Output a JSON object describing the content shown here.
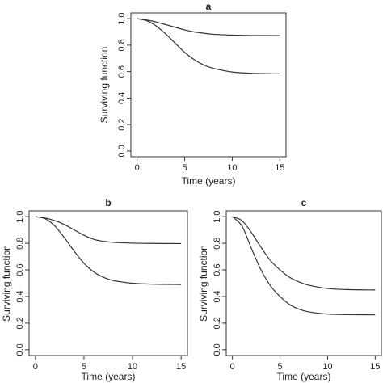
{
  "chart_data": [
    {
      "type": "line",
      "title": "a",
      "xlabel": "Time (years)",
      "ylabel": "Surviving function",
      "xlim": [
        0,
        15
      ],
      "ylim": [
        0,
        1
      ],
      "xticks": [
        0,
        5,
        10,
        15
      ],
      "yticks": [
        0.0,
        0.2,
        0.4,
        0.6,
        0.8,
        1.0
      ],
      "ytick_labels": [
        "0.0",
        "0.2",
        "0.4",
        "0.6",
        "0.8",
        "1.0"
      ],
      "xtick_labels": [
        "0",
        "5",
        "10",
        "15"
      ],
      "series": [
        {
          "x": [
            0,
            1,
            2,
            3,
            4,
            5,
            6,
            7,
            8,
            10,
            12,
            15
          ],
          "values": [
            1.0,
            0.99,
            0.975,
            0.955,
            0.935,
            0.915,
            0.9,
            0.89,
            0.882,
            0.876,
            0.873,
            0.872
          ]
        },
        {
          "x": [
            0,
            1,
            2,
            3,
            4,
            5,
            6,
            7,
            8,
            10,
            12,
            15
          ],
          "values": [
            1.0,
            0.985,
            0.945,
            0.885,
            0.815,
            0.745,
            0.69,
            0.65,
            0.625,
            0.597,
            0.587,
            0.583
          ]
        }
      ]
    },
    {
      "type": "line",
      "title": "b",
      "xlabel": "Time (years)",
      "ylabel": "Surviving function",
      "xlim": [
        0,
        15
      ],
      "ylim": [
        0,
        1
      ],
      "xticks": [
        0,
        5,
        10,
        15
      ],
      "yticks": [
        0.0,
        0.2,
        0.4,
        0.6,
        0.8,
        1.0
      ],
      "ytick_labels": [
        "0.0",
        "0.2",
        "0.4",
        "0.6",
        "0.8",
        "1.0"
      ],
      "xtick_labels": [
        "0",
        "5",
        "10",
        "15"
      ],
      "series": [
        {
          "x": [
            0,
            1,
            2,
            3,
            4,
            5,
            6,
            7,
            8,
            10,
            12,
            15
          ],
          "values": [
            1.0,
            0.99,
            0.97,
            0.94,
            0.9,
            0.86,
            0.83,
            0.815,
            0.807,
            0.801,
            0.799,
            0.798
          ]
        },
        {
          "x": [
            0,
            1,
            2,
            3,
            4,
            5,
            6,
            7,
            8,
            10,
            12,
            15
          ],
          "values": [
            1.0,
            0.985,
            0.93,
            0.84,
            0.74,
            0.65,
            0.585,
            0.545,
            0.52,
            0.5,
            0.493,
            0.49
          ]
        }
      ]
    },
    {
      "type": "line",
      "title": "c",
      "xlabel": "Time (years)",
      "ylabel": "Surviving function",
      "xlim": [
        0,
        15
      ],
      "ylim": [
        0,
        1
      ],
      "xticks": [
        0,
        5,
        10,
        15
      ],
      "yticks": [
        0.0,
        0.2,
        0.4,
        0.6,
        0.8,
        1.0
      ],
      "ytick_labels": [
        "0.0",
        "0.2",
        "0.4",
        "0.6",
        "0.8",
        "1.0"
      ],
      "xtick_labels": [
        "0",
        "5",
        "10",
        "15"
      ],
      "series": [
        {
          "x": [
            0,
            1,
            2,
            3,
            4,
            5,
            6,
            7,
            8,
            10,
            12,
            15
          ],
          "values": [
            1.0,
            0.97,
            0.88,
            0.77,
            0.67,
            0.6,
            0.545,
            0.51,
            0.485,
            0.46,
            0.452,
            0.449
          ]
        },
        {
          "x": [
            0,
            1,
            2,
            3,
            4,
            5,
            6,
            7,
            8,
            10,
            12,
            15
          ],
          "values": [
            1.0,
            0.93,
            0.76,
            0.6,
            0.48,
            0.4,
            0.34,
            0.305,
            0.285,
            0.268,
            0.264,
            0.262
          ]
        }
      ]
    }
  ]
}
